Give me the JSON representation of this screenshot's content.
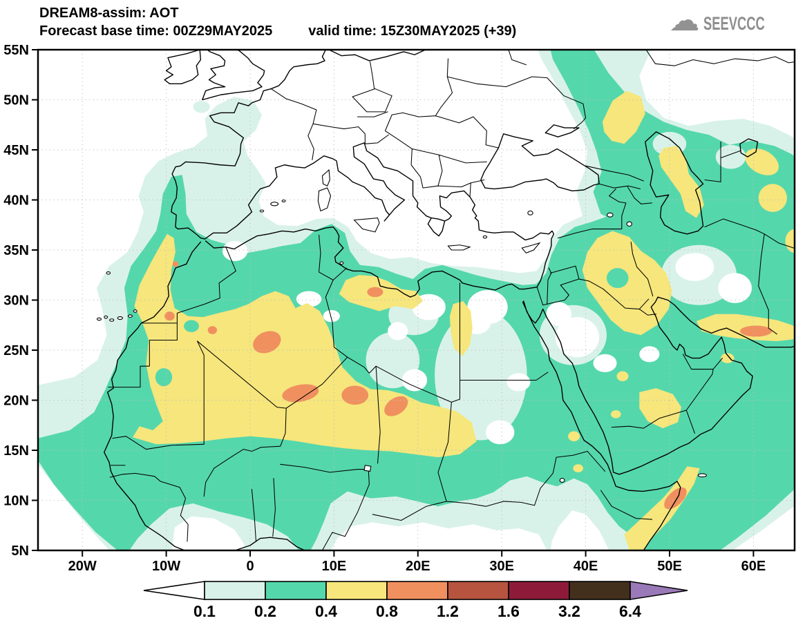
{
  "header": {
    "title": "DREAM8-assim: AOT",
    "forecast_base_label": "Forecast base time:",
    "forecast_base_time": "00Z29MAY2025",
    "valid_label": "valid time:",
    "valid_time": "15Z30MAY2025 (+39)"
  },
  "branding": {
    "name": "SEEVCCC",
    "cloud_icon_color": "#929292"
  },
  "axes": {
    "lat": [
      {
        "deg": 55,
        "label": "55N"
      },
      {
        "deg": 50,
        "label": "50N"
      },
      {
        "deg": 45,
        "label": "45N"
      },
      {
        "deg": 40,
        "label": "40N"
      },
      {
        "deg": 35,
        "label": "35N"
      },
      {
        "deg": 30,
        "label": "30N"
      },
      {
        "deg": 25,
        "label": "25N"
      },
      {
        "deg": 20,
        "label": "20N"
      },
      {
        "deg": 15,
        "label": "15N"
      },
      {
        "deg": 10,
        "label": "10N"
      },
      {
        "deg": 5,
        "label": "5N"
      }
    ],
    "lon": [
      {
        "deg": -20,
        "label": "20W"
      },
      {
        "deg": -10,
        "label": "10W"
      },
      {
        "deg": 0,
        "label": "0"
      },
      {
        "deg": 10,
        "label": "10E"
      },
      {
        "deg": 20,
        "label": "20E"
      },
      {
        "deg": 30,
        "label": "30E"
      },
      {
        "deg": 40,
        "label": "40E"
      },
      {
        "deg": 50,
        "label": "50E"
      },
      {
        "deg": 60,
        "label": "60E"
      }
    ]
  },
  "legend": {
    "tick_labels": [
      "0.1",
      "0.2",
      "0.4",
      "0.8",
      "1.2",
      "1.6",
      "3.2",
      "6.4"
    ],
    "band_colors": [
      "#d9f2e9",
      "#55d7ac",
      "#f6e67c",
      "#f0905f",
      "#b6543f",
      "#8e1a3a",
      "#42301d"
    ],
    "below_color": "#ffffff",
    "above_color": "#9a79b8"
  }
}
